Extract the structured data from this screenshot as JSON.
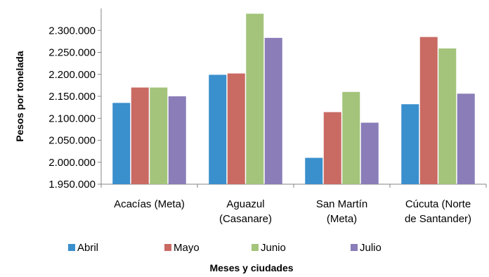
{
  "chart_data": {
    "type": "bar",
    "ylabel": "Pesos por tonelada",
    "xlabel": "Meses y ciudades",
    "ylim": [
      1950000,
      2350000
    ],
    "ytick_values": [
      1950000,
      2000000,
      2050000,
      2100000,
      2150000,
      2200000,
      2250000,
      2300000
    ],
    "ytick_labels": [
      "1.950.000",
      "2.000.000",
      "2.050.000",
      "2.100.000",
      "2.150.000",
      "2.200.000",
      "2.250.000",
      "2.300.000"
    ],
    "categories": [
      [
        "Acacías (Meta)"
      ],
      [
        "Aguazul",
        "(Casanare)"
      ],
      [
        "San Martín",
        "(Meta)"
      ],
      [
        "Cúcuta (Norte",
        "de Santander)"
      ]
    ],
    "series": [
      {
        "name": "Abril",
        "color": "#3a8fcd",
        "values": [
          2135000,
          2199000,
          2010000,
          2132000
        ]
      },
      {
        "name": "Mayo",
        "color": "#c96a63",
        "values": [
          2170000,
          2202000,
          2114000,
          2285000
        ]
      },
      {
        "name": "Junio",
        "color": "#a3c47a",
        "values": [
          2170000,
          2338000,
          2160000,
          2259000
        ]
      },
      {
        "name": "Julio",
        "color": "#8a7db8",
        "values": [
          2150000,
          2283000,
          2090000,
          2156000
        ]
      }
    ],
    "grid": false,
    "legend_position": "bottom"
  }
}
